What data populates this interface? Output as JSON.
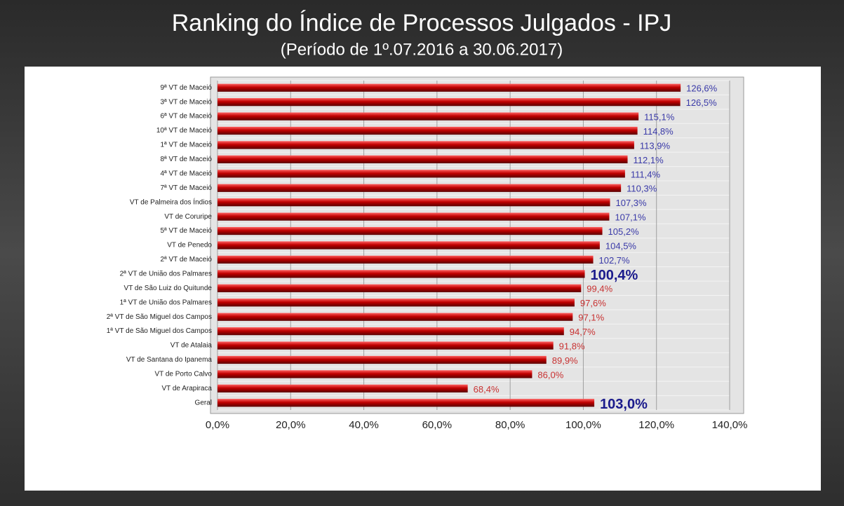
{
  "chart_data": {
    "type": "bar",
    "orientation": "horizontal",
    "title": "Ranking do Índice de Processos Julgados - IPJ",
    "subtitle": "(Período de 1º.07.2016  a  30.06.2017)",
    "categories": [
      "9ª VT de Maceió",
      "3ª VT de Maceió",
      "6ª VT de Maceió",
      "10ª VT de Maceió",
      "1ª VT de Maceió",
      "8ª VT de Maceió",
      "4ª VT de Maceió",
      "7ª VT de Maceió",
      "VT de Palmeira dos Índios",
      "VT de Coruripe",
      "5ª VT de Maceió",
      "VT de Penedo",
      "2ª VT de Maceió",
      "2ª VT de União dos Palmares",
      "VT de São Luiz do Quitunde",
      "1ª VT de União dos Palmares",
      "2ª VT de São Miguel dos Campos",
      "1ª VT de São Miguel dos Campos",
      "VT de Atalaia",
      "VT de Santana do Ipanema",
      "VT de Porto Calvo",
      "VT de Arapiraca",
      "Geral"
    ],
    "values": [
      126.6,
      126.5,
      115.1,
      114.8,
      113.9,
      112.1,
      111.4,
      110.3,
      107.3,
      107.1,
      105.2,
      104.5,
      102.7,
      100.4,
      99.4,
      97.6,
      97.1,
      94.7,
      91.8,
      89.9,
      86.0,
      68.4,
      103.0
    ],
    "value_labels": [
      "126,6%",
      "126,5%",
      "115,1%",
      "114,8%",
      "113,9%",
      "112,1%",
      "111,4%",
      "110,3%",
      "107,3%",
      "107,1%",
      "105,2%",
      "104,5%",
      "102,7%",
      "100,4%",
      "99,4%",
      "97,6%",
      "97,1%",
      "94,7%",
      "91,8%",
      "89,9%",
      "86,0%",
      "68,4%",
      "103,0%"
    ],
    "value_label_colors": [
      "#3a3aa8",
      "#3a3aa8",
      "#3a3aa8",
      "#3a3aa8",
      "#3a3aa8",
      "#3a3aa8",
      "#3a3aa8",
      "#3a3aa8",
      "#3a3aa8",
      "#3a3aa8",
      "#3a3aa8",
      "#3a3aa8",
      "#3a3aa8",
      "#1a1a8c",
      "#c83232",
      "#c83232",
      "#c83232",
      "#c83232",
      "#c83232",
      "#c83232",
      "#c83232",
      "#c83232",
      "#1a1a8c"
    ],
    "value_label_weights": [
      "normal",
      "normal",
      "normal",
      "normal",
      "normal",
      "normal",
      "normal",
      "normal",
      "normal",
      "normal",
      "normal",
      "normal",
      "normal",
      "bold",
      "normal",
      "normal",
      "normal",
      "normal",
      "normal",
      "normal",
      "normal",
      "normal",
      "bold"
    ],
    "color": "#c00000",
    "xlim": [
      0,
      140
    ],
    "xticks": [
      {
        "value": 0,
        "label": "0,0%"
      },
      {
        "value": 20,
        "label": "20,0%"
      },
      {
        "value": 40,
        "label": "40,0%"
      },
      {
        "value": 60,
        "label": "60,0%"
      },
      {
        "value": 80,
        "label": "80,0%"
      },
      {
        "value": 100,
        "label": "100,0%"
      },
      {
        "value": 120,
        "label": "120,0%"
      },
      {
        "value": 140,
        "label": "140,0%"
      }
    ],
    "grid": true
  }
}
